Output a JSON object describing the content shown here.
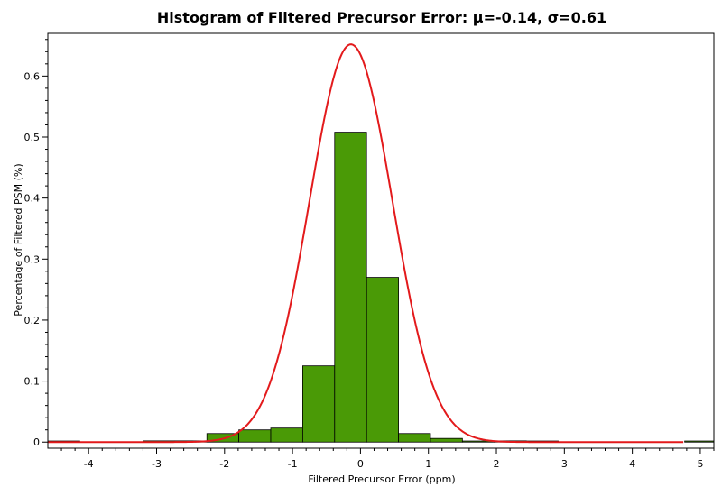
{
  "chart_data": {
    "type": "bar",
    "title": "Histogram of Filtered Precursor Error: μ=-0.14, σ=0.61",
    "xlabel": "Filtered Precursor Error (ppm)",
    "ylabel": "Percentage of Filtered PSM (%)",
    "xlim": [
      -4.6,
      5.2
    ],
    "ylim": [
      -0.01,
      0.67
    ],
    "x_ticks": [
      -4,
      -3,
      -2,
      -1,
      0,
      1,
      2,
      3,
      4,
      5
    ],
    "y_ticks": [
      0,
      0.1,
      0.2,
      0.3,
      0.4,
      0.5,
      0.6
    ],
    "grid": false,
    "bar_color": "#4a9a06",
    "curve_color": "#e31a1c",
    "bins": [
      {
        "start": -4.6,
        "end": -4.13,
        "value": 0.001
      },
      {
        "start": -3.2,
        "end": -2.73,
        "value": 0.002
      },
      {
        "start": -2.73,
        "end": -2.26,
        "value": 0.002
      },
      {
        "start": -2.26,
        "end": -1.79,
        "value": 0.014
      },
      {
        "start": -1.79,
        "end": -1.32,
        "value": 0.02
      },
      {
        "start": -1.32,
        "end": -0.85,
        "value": 0.023
      },
      {
        "start": -0.85,
        "end": -0.38,
        "value": 0.125
      },
      {
        "start": -0.38,
        "end": 0.09,
        "value": 0.508
      },
      {
        "start": 0.09,
        "end": 0.56,
        "value": 0.27
      },
      {
        "start": 0.56,
        "end": 1.03,
        "value": 0.014
      },
      {
        "start": 1.03,
        "end": 1.5,
        "value": 0.006
      },
      {
        "start": 1.5,
        "end": 1.97,
        "value": 0.001
      },
      {
        "start": 1.97,
        "end": 2.44,
        "value": 0.002
      },
      {
        "start": 2.44,
        "end": 2.91,
        "value": 0.001
      },
      {
        "start": 4.77,
        "end": 5.2,
        "value": 0.0
      }
    ],
    "curve": {
      "type": "normal",
      "mu": -0.14,
      "sigma": 0.61,
      "peak": 0.652,
      "x_range": [
        -4.6,
        4.75
      ]
    }
  }
}
